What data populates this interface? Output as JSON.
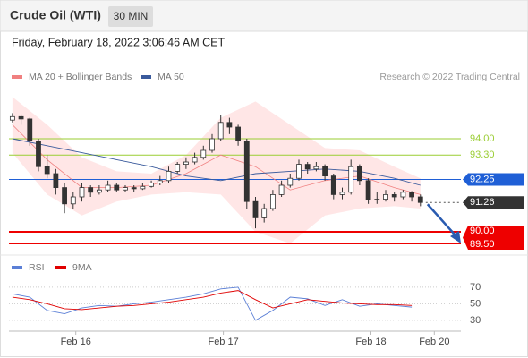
{
  "chart_data": {
    "type": "candlestick",
    "title": "Crude Oil (WTI)",
    "interval": "30 MIN",
    "date": "Friday, February 18, 2022 3:06:46 AM CET",
    "credit": "Research © 2022 Trading Central",
    "ylim": [
      89.0,
      96.3
    ],
    "xlim": [
      -0.4,
      51.66
    ],
    "xticks": [
      {
        "value": 7.3,
        "label": "Feb 16"
      },
      {
        "value": 24.3,
        "label": "Feb 17"
      },
      {
        "value": 41.3,
        "label": "Feb 18"
      },
      {
        "value": 48.6,
        "label": "Feb 20"
      }
    ],
    "up_color": "#ffffff",
    "down_color": "#333333",
    "candles": [
      [
        94.8,
        95.1,
        94.7,
        94.95
      ],
      [
        94.95,
        95.05,
        94.6,
        94.85
      ],
      [
        94.85,
        94.9,
        93.7,
        93.9
      ],
      [
        93.9,
        94.0,
        92.6,
        92.8
      ],
      [
        92.8,
        93.3,
        92.3,
        92.5
      ],
      [
        92.5,
        92.7,
        91.6,
        91.9
      ],
      [
        91.9,
        92.1,
        90.8,
        91.2
      ],
      [
        91.2,
        91.7,
        91.0,
        91.5
      ],
      [
        91.5,
        92.1,
        91.3,
        91.9
      ],
      [
        91.9,
        92.0,
        91.5,
        91.7
      ],
      [
        91.7,
        92.0,
        91.6,
        91.8
      ],
      [
        91.8,
        92.2,
        91.7,
        92.0
      ],
      [
        92.0,
        92.1,
        91.7,
        91.8
      ],
      [
        91.8,
        92.0,
        91.7,
        91.9
      ],
      [
        91.9,
        92.0,
        91.7,
        91.85
      ],
      [
        91.85,
        92.1,
        91.8,
        91.95
      ],
      [
        91.95,
        92.2,
        91.9,
        92.1
      ],
      [
        92.1,
        92.4,
        92.0,
        92.2
      ],
      [
        92.2,
        92.8,
        92.1,
        92.6
      ],
      [
        92.6,
        93.0,
        92.5,
        92.9
      ],
      [
        92.9,
        93.2,
        92.7,
        93.0
      ],
      [
        93.0,
        93.4,
        92.9,
        93.2
      ],
      [
        93.2,
        93.7,
        93.1,
        93.5
      ],
      [
        93.5,
        94.2,
        93.4,
        94.0
      ],
      [
        94.0,
        95.0,
        93.9,
        94.7
      ],
      [
        94.7,
        94.9,
        94.2,
        94.5
      ],
      [
        94.5,
        94.6,
        93.7,
        93.9
      ],
      [
        93.9,
        94.0,
        91.0,
        91.3
      ],
      [
        91.3,
        91.5,
        90.15,
        90.6
      ],
      [
        90.6,
        91.2,
        90.4,
        91.0
      ],
      [
        91.0,
        91.8,
        90.9,
        91.6
      ],
      [
        91.6,
        92.2,
        91.5,
        92.0
      ],
      [
        92.0,
        92.5,
        91.9,
        92.3
      ],
      [
        92.3,
        93.1,
        92.2,
        92.9
      ],
      [
        92.9,
        93.0,
        92.5,
        92.7
      ],
      [
        92.7,
        93.0,
        92.6,
        92.8
      ],
      [
        92.8,
        92.9,
        92.2,
        92.4
      ],
      [
        92.4,
        92.5,
        91.4,
        91.6
      ],
      [
        91.6,
        91.9,
        91.4,
        91.7
      ],
      [
        91.7,
        93.1,
        91.6,
        92.8
      ],
      [
        92.8,
        92.9,
        92.0,
        92.2
      ],
      [
        92.2,
        92.3,
        91.2,
        91.4
      ],
      [
        91.4,
        91.7,
        91.2,
        91.4
      ],
      [
        91.4,
        91.8,
        91.3,
        91.6
      ],
      [
        91.6,
        91.7,
        91.3,
        91.5
      ],
      [
        91.5,
        91.8,
        91.4,
        91.7
      ],
      [
        91.7,
        91.75,
        91.3,
        91.5
      ],
      [
        91.5,
        91.6,
        91.1,
        91.26
      ]
    ],
    "overlay_x": [
      0,
      4,
      8,
      12,
      16,
      20,
      24,
      28,
      32,
      36,
      40,
      44,
      47
    ],
    "series": [
      {
        "name": "MA 20 + Bollinger Bands",
        "color": "#f08080",
        "values": [
          94.6,
          93.1,
          91.9,
          91.9,
          92.0,
          92.5,
          93.3,
          92.8,
          91.8,
          92.2,
          92.4,
          91.9,
          91.6
        ],
        "upper": [
          95.8,
          94.6,
          93.2,
          92.6,
          92.5,
          93.3,
          94.9,
          95.6,
          94.6,
          93.6,
          93.5,
          92.8,
          92.3
        ],
        "lower": [
          93.4,
          91.6,
          90.7,
          91.3,
          91.6,
          91.7,
          91.6,
          90.0,
          89.5,
          90.7,
          91.0,
          91.1,
          91.0
        ]
      },
      {
        "name": "MA 50",
        "color": "#3a5a9c",
        "values": [
          94.0,
          93.7,
          93.4,
          93.1,
          92.8,
          92.4,
          92.2,
          92.5,
          92.6,
          92.7,
          92.6,
          92.3,
          92.0
        ]
      }
    ],
    "levels": [
      {
        "value": 94.0,
        "label": "94.00",
        "color": "#9acd32",
        "style": "text"
      },
      {
        "value": 93.3,
        "label": "93.30",
        "color": "#9acd32",
        "style": "text"
      },
      {
        "value": 92.25,
        "label": "92.25",
        "color": "#1f5fd6",
        "style": "box"
      },
      {
        "value": 91.26,
        "label": "91.26",
        "color": "#333333",
        "style": "box"
      },
      {
        "value": 90.0,
        "label": "90.00",
        "color": "#ee0000",
        "style": "box"
      },
      {
        "value": 89.5,
        "label": "89.50",
        "color": "#ee0000",
        "style": "box"
      }
    ],
    "rsi": {
      "ylim": [
        18,
        92
      ],
      "yticks": [
        30,
        50,
        70
      ],
      "x": [
        0,
        2,
        4,
        6,
        8,
        10,
        12,
        14,
        16,
        18,
        20,
        22,
        24,
        26,
        28,
        30,
        32,
        34,
        36,
        38,
        40,
        42,
        44,
        46
      ],
      "series": [
        {
          "name": "RSI",
          "color": "#5b7fd6",
          "values": [
            62,
            58,
            42,
            38,
            45,
            48,
            47,
            50,
            52,
            55,
            58,
            62,
            68,
            70,
            30,
            42,
            58,
            56,
            48,
            55,
            47,
            50,
            48,
            46
          ]
        },
        {
          "name": "9MA",
          "color": "#e00000",
          "values": [
            58,
            55,
            50,
            44,
            43,
            45,
            47,
            48,
            50,
            52,
            55,
            58,
            63,
            66,
            55,
            45,
            50,
            55,
            53,
            51,
            50,
            49,
            49,
            48
          ]
        }
      ]
    }
  }
}
